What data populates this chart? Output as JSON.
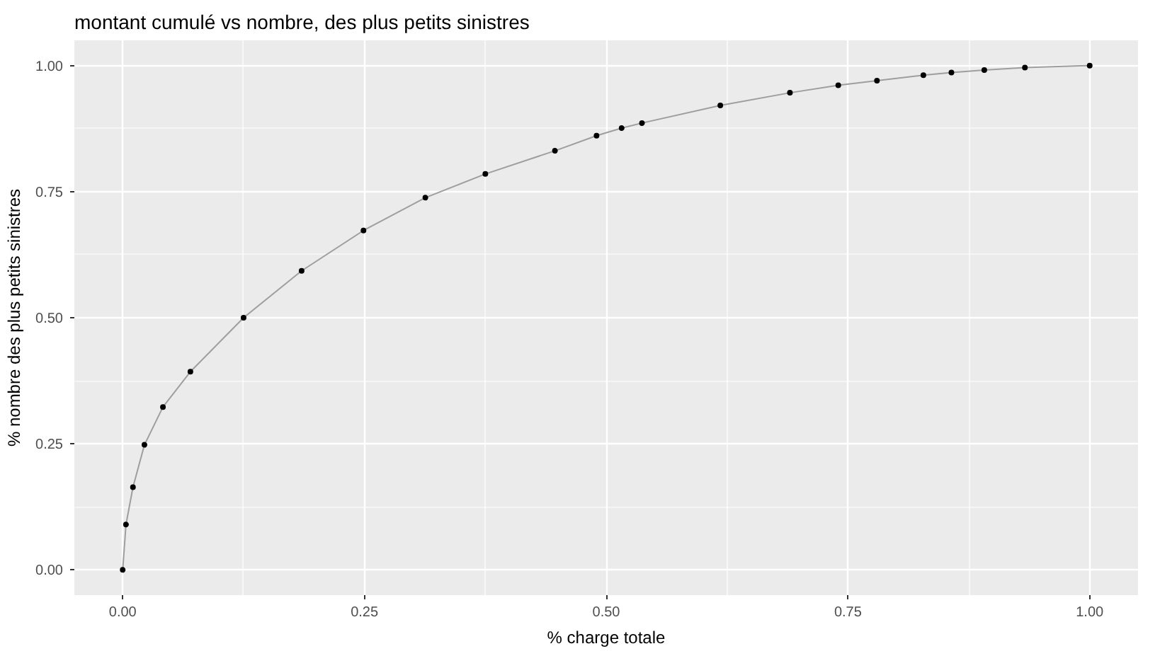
{
  "chart_data": {
    "type": "line",
    "title": "montant cumulé vs nombre, des plus petits sinistres",
    "xlabel": "% charge totale",
    "ylabel": "% nombre des plus petits sinistres",
    "xlim": [
      -0.05,
      1.05
    ],
    "ylim": [
      -0.05,
      1.05
    ],
    "xticks": [
      {
        "value": 0,
        "label": "0.00"
      },
      {
        "value": 0.25,
        "label": "0.25"
      },
      {
        "value": 0.5,
        "label": "0.50"
      },
      {
        "value": 0.75,
        "label": "0.75"
      },
      {
        "value": 1,
        "label": "1.00"
      }
    ],
    "yticks": [
      {
        "value": 0,
        "label": "0.00"
      },
      {
        "value": 0.25,
        "label": "0.25"
      },
      {
        "value": 0.5,
        "label": "0.50"
      },
      {
        "value": 0.75,
        "label": "0.75"
      },
      {
        "value": 1,
        "label": "1.00"
      }
    ],
    "grid": true,
    "marker": "circle",
    "line_style": "solid",
    "series": [
      {
        "color": "#000000",
        "x": [
          0,
          0.0034,
          0.0106,
          0.0225,
          0.0416,
          0.07,
          0.125,
          0.185,
          0.249,
          0.313,
          0.375,
          0.447,
          0.49,
          0.516,
          0.537,
          0.618,
          0.69,
          0.74,
          0.78,
          0.828,
          0.857,
          0.891,
          0.933,
          1
        ],
        "values": [
          0,
          0.09,
          0.164,
          0.248,
          0.323,
          0.393,
          0.5,
          0.593,
          0.673,
          0.738,
          0.785,
          0.831,
          0.861,
          0.876,
          0.886,
          0.921,
          0.946,
          0.961,
          0.97,
          0.981,
          0.986,
          0.991,
          0.996,
          1
        ]
      }
    ]
  }
}
